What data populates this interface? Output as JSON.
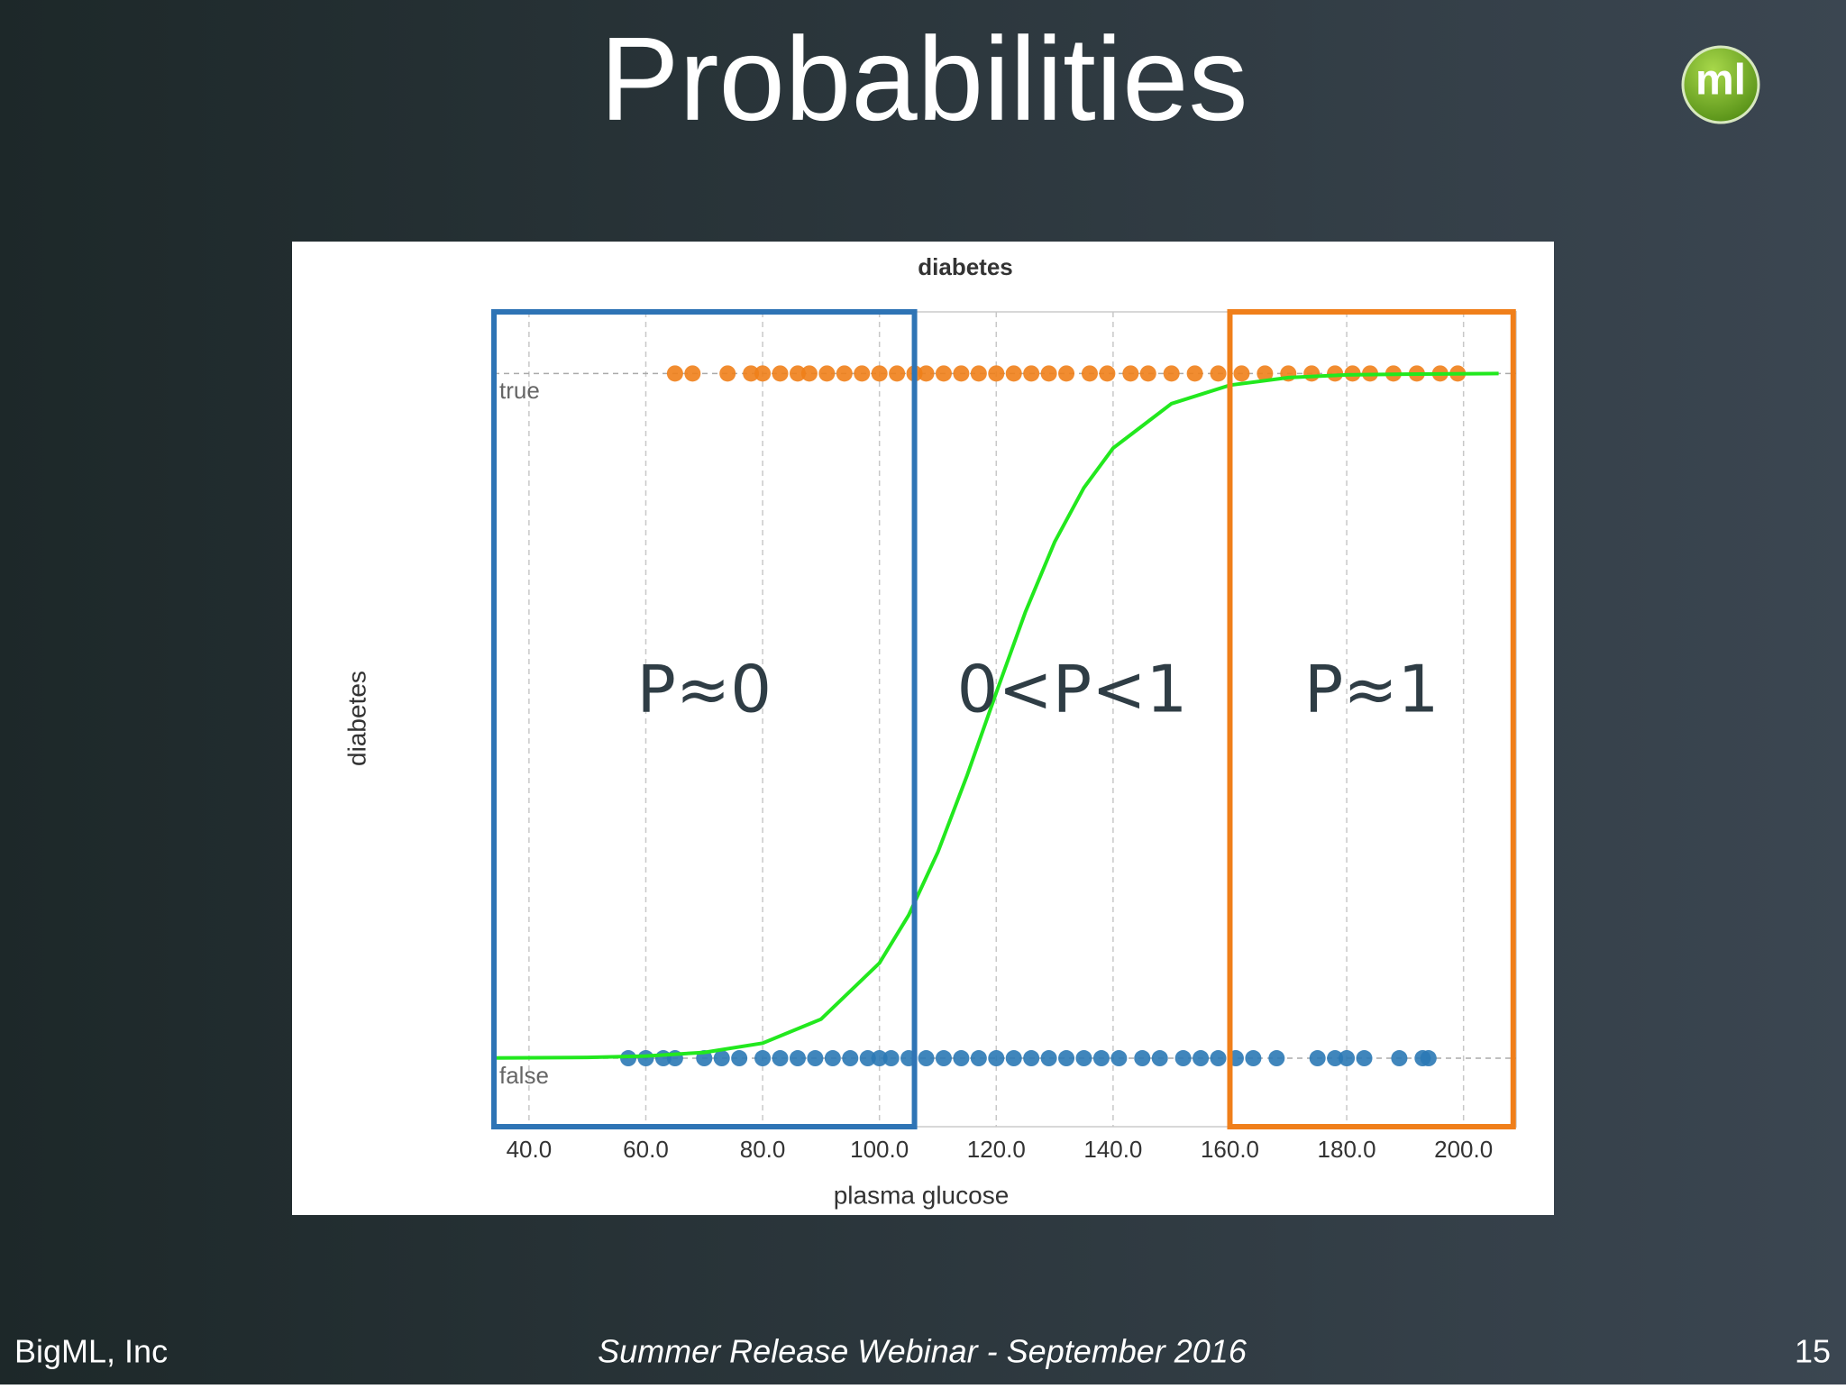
{
  "slide": {
    "title": "Probabilities",
    "logo": "ml",
    "footer_left": "BigML, Inc",
    "footer_center": "Summer Release Webinar - September 2016",
    "page_number": "15"
  },
  "chart_data": {
    "type": "scatter",
    "title": "diabetes",
    "x_label": "plasma glucose",
    "y_label": "diabetes",
    "xlim": [
      34,
      209
    ],
    "xticks": [
      {
        "value": 40,
        "label": "40.0"
      },
      {
        "value": 60,
        "label": "60.0"
      },
      {
        "value": 80,
        "label": "80.0"
      },
      {
        "value": 100,
        "label": "100.0"
      },
      {
        "value": 120,
        "label": "120.0"
      },
      {
        "value": 140,
        "label": "140.0"
      },
      {
        "value": 160,
        "label": "160.0"
      },
      {
        "value": 180,
        "label": "180.0"
      },
      {
        "value": 200,
        "label": "200.0"
      }
    ],
    "ylim": [
      -0.1,
      1.09
    ],
    "yticks": [
      {
        "value": 0,
        "label": "false"
      },
      {
        "value": 1,
        "label": "true"
      }
    ],
    "grid": true,
    "series": [
      {
        "type": "scatter",
        "color": "#f07f1a",
        "x": [
          65,
          68,
          74,
          78,
          80,
          83,
          86,
          88,
          91,
          94,
          97,
          100,
          103,
          106,
          108,
          111,
          114,
          117,
          120,
          123,
          126,
          129,
          132,
          136,
          139,
          143,
          146,
          150,
          154,
          158,
          162,
          166,
          170,
          174,
          178,
          181,
          184,
          188,
          192,
          196,
          199
        ],
        "values": [
          1,
          1,
          1,
          1,
          1,
          1,
          1,
          1,
          1,
          1,
          1,
          1,
          1,
          1,
          1,
          1,
          1,
          1,
          1,
          1,
          1,
          1,
          1,
          1,
          1,
          1,
          1,
          1,
          1,
          1,
          1,
          1,
          1,
          1,
          1,
          1,
          1,
          1,
          1,
          1,
          1
        ]
      },
      {
        "type": "scatter",
        "color": "#2b79b5",
        "x": [
          57,
          60,
          63,
          65,
          70,
          73,
          76,
          80,
          83,
          86,
          89,
          92,
          95,
          98,
          100,
          102,
          105,
          108,
          111,
          114,
          117,
          120,
          123,
          126,
          129,
          132,
          135,
          138,
          141,
          145,
          148,
          152,
          155,
          158,
          161,
          164,
          168,
          175,
          178,
          180,
          183,
          189,
          193,
          194
        ],
        "values": [
          0,
          0,
          0,
          0,
          0,
          0,
          0,
          0,
          0,
          0,
          0,
          0,
          0,
          0,
          0,
          0,
          0,
          0,
          0,
          0,
          0,
          0,
          0,
          0,
          0,
          0,
          0,
          0,
          0,
          0,
          0,
          0,
          0,
          0,
          0,
          0,
          0,
          0,
          0,
          0,
          0,
          0,
          0,
          0
        ]
      },
      {
        "type": "line",
        "color": "#22e81e",
        "x": [
          34,
          50,
          60,
          70,
          80,
          90,
          100,
          105,
          110,
          115,
          120,
          125,
          130,
          135,
          140,
          150,
          160,
          170,
          180,
          190,
          206
        ],
        "values": [
          0.0003,
          0.0012,
          0.0032,
          0.0085,
          0.022,
          0.057,
          0.139,
          0.209,
          0.301,
          0.413,
          0.534,
          0.652,
          0.754,
          0.833,
          0.891,
          0.956,
          0.983,
          0.994,
          0.998,
          0.999,
          1.0
        ]
      }
    ],
    "regions": [
      {
        "label": "P≈0",
        "x0": 34,
        "x1": 106,
        "color": "#2e74b5",
        "border": true
      },
      {
        "label": "0<P<1",
        "x0": 106,
        "x1": 160,
        "color": "#2f3d45",
        "border": false
      },
      {
        "label": "P≈1",
        "x0": 160,
        "x1": 208.5,
        "color": "#f07f1a",
        "border": true
      }
    ]
  }
}
